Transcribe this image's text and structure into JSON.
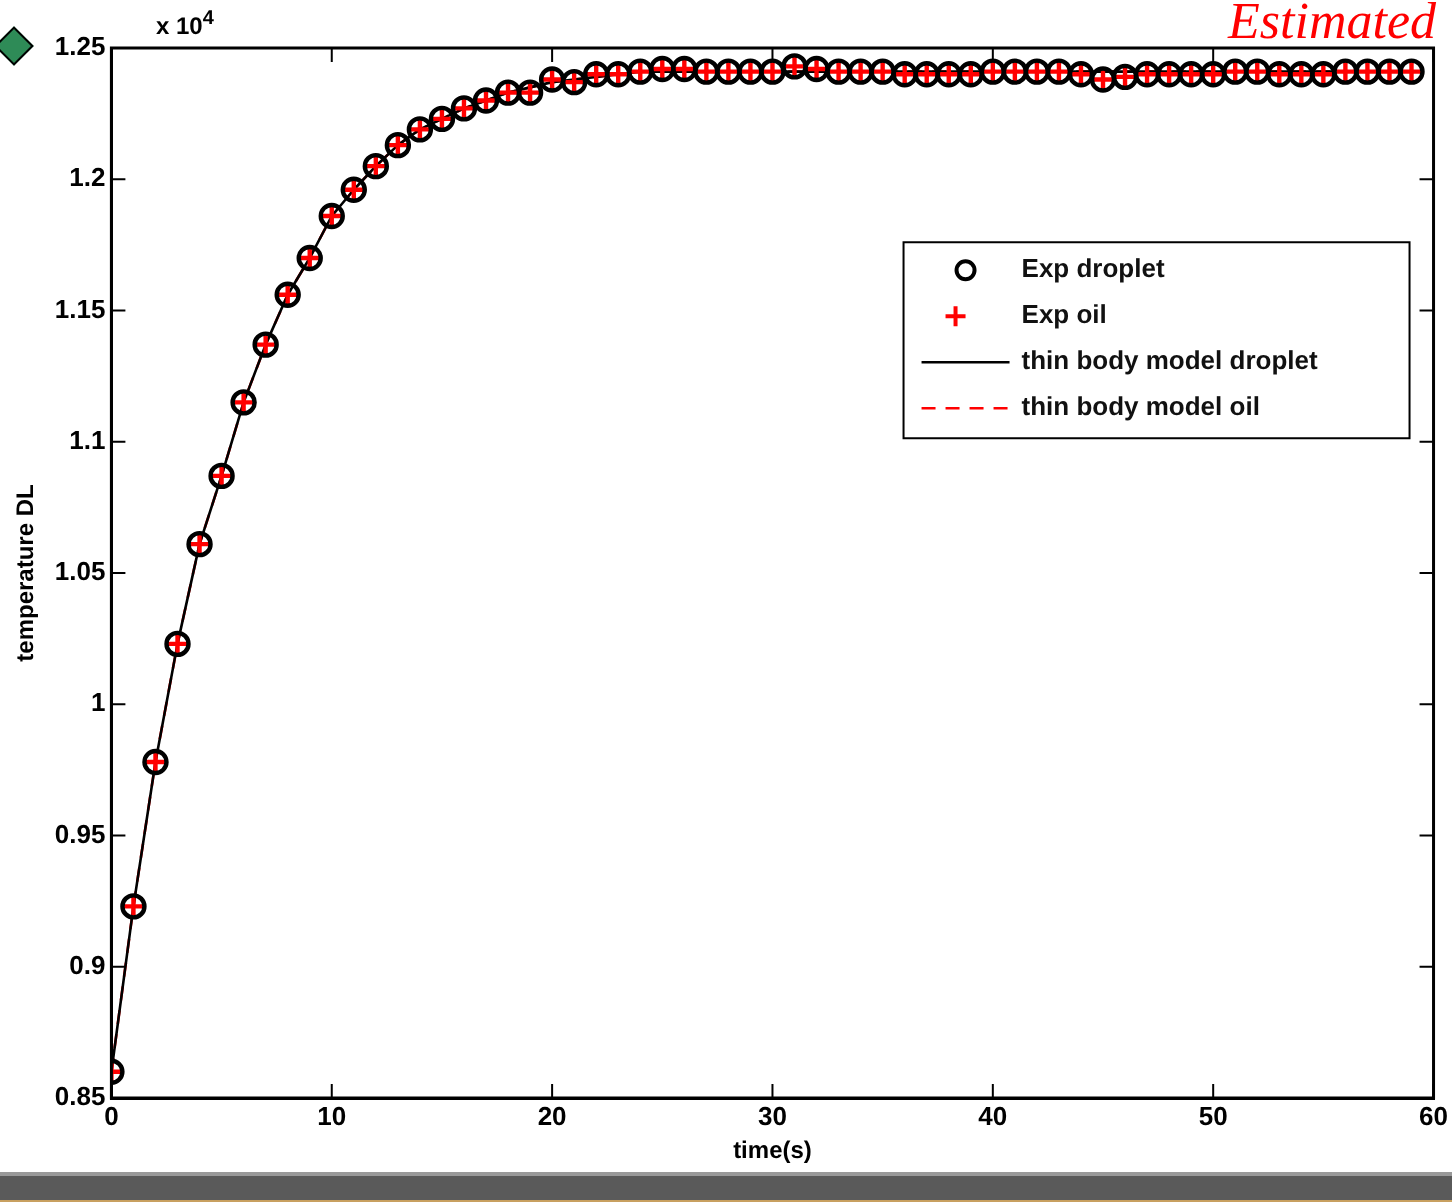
{
  "chart_data": {
    "type": "scatter",
    "title": "Estimated",
    "xlabel": "time(s)",
    "ylabel": "temperature DL",
    "annotations": [
      "x 10$^{4}$"
    ],
    "x": [
      0,
      1,
      2,
      3,
      4,
      5,
      6,
      7,
      8,
      9,
      10,
      11,
      12,
      13,
      14,
      15,
      16,
      17,
      18,
      19,
      20,
      21,
      22,
      23,
      24,
      25,
      26,
      27,
      28,
      29,
      30,
      31,
      32,
      33,
      34,
      35,
      36,
      37,
      38,
      39,
      40,
      41,
      42,
      43,
      44,
      45,
      46,
      47,
      48,
      49,
      50,
      51,
      52,
      53,
      54,
      55,
      56,
      57,
      58,
      59
    ],
    "xlim": [
      0,
      60
    ],
    "xticks": [
      0,
      10,
      20,
      30,
      40,
      50,
      60
    ],
    "ylim": [
      0.85,
      1.25
    ],
    "yticks": [
      0.85,
      0.9,
      0.95,
      1,
      1.05,
      1.1,
      1.15,
      1.2,
      1.25
    ],
    "grid": false,
    "legend": "right",
    "series": [
      {
        "name": "Exp droplet",
        "marker": "circle",
        "color": "#000000",
        "values": [
          0.86,
          0.923,
          0.978,
          1.023,
          1.061,
          1.087,
          1.115,
          1.137,
          1.156,
          1.17,
          1.186,
          1.196,
          1.205,
          1.213,
          1.219,
          1.223,
          1.227,
          1.23,
          1.233,
          1.233,
          1.238,
          1.237,
          1.24,
          1.24,
          1.241,
          1.242,
          1.242,
          1.241,
          1.241,
          1.241,
          1.241,
          1.243,
          1.242,
          1.241,
          1.241,
          1.241,
          1.24,
          1.24,
          1.24,
          1.24,
          1.241,
          1.241,
          1.241,
          1.241,
          1.24,
          1.238,
          1.239,
          1.24,
          1.24,
          1.24,
          1.24,
          1.241,
          1.241,
          1.24,
          1.24,
          1.24,
          1.241,
          1.241,
          1.241,
          1.241
        ]
      },
      {
        "name": "Exp oil",
        "marker": "cross",
        "color": "#ff0000",
        "values": [
          0.86,
          0.923,
          0.978,
          1.023,
          1.061,
          1.087,
          1.115,
          1.137,
          1.156,
          1.17,
          1.186,
          1.196,
          1.205,
          1.213,
          1.219,
          1.223,
          1.227,
          1.23,
          1.233,
          1.233,
          1.238,
          1.237,
          1.24,
          1.24,
          1.241,
          1.242,
          1.242,
          1.241,
          1.241,
          1.241,
          1.241,
          1.243,
          1.242,
          1.241,
          1.241,
          1.241,
          1.24,
          1.24,
          1.24,
          1.24,
          1.241,
          1.241,
          1.241,
          1.241,
          1.24,
          1.238,
          1.239,
          1.24,
          1.24,
          1.24,
          1.24,
          1.241,
          1.241,
          1.24,
          1.24,
          1.24,
          1.241,
          1.241,
          1.241,
          1.241
        ]
      },
      {
        "name": "thin body model droplet",
        "type": "line",
        "marker": "none",
        "line_style": "solid",
        "color": "#000000",
        "values": [
          0.86,
          0.923,
          0.978,
          1.023,
          1.061,
          1.087,
          1.115,
          1.137,
          1.156,
          1.17,
          1.186,
          1.196,
          1.205,
          1.213,
          1.219,
          1.223,
          1.227,
          1.23,
          1.233,
          1.235,
          1.237,
          1.238,
          1.239,
          1.24,
          1.241,
          1.241,
          1.241,
          1.241,
          1.241,
          1.241,
          1.241,
          1.241,
          1.241,
          1.241,
          1.241,
          1.241,
          1.241,
          1.241,
          1.241,
          1.241,
          1.241,
          1.241,
          1.241,
          1.241,
          1.241,
          1.241,
          1.241,
          1.241,
          1.241,
          1.241,
          1.241,
          1.241,
          1.241,
          1.241,
          1.241,
          1.241,
          1.241,
          1.241,
          1.241,
          1.241
        ]
      },
      {
        "name": "thin body model oil",
        "type": "line",
        "marker": "none",
        "line_style": "dashed",
        "color": "#ff0000",
        "values": [
          0.86,
          0.923,
          0.978,
          1.023,
          1.061,
          1.087,
          1.115,
          1.137,
          1.156,
          1.17,
          1.186,
          1.196,
          1.205,
          1.213,
          1.219,
          1.223,
          1.227,
          1.23,
          1.233,
          1.235,
          1.237,
          1.238,
          1.239,
          1.24,
          1.241,
          1.241,
          1.241,
          1.241,
          1.241,
          1.241,
          1.241,
          1.241,
          1.241,
          1.241,
          1.241,
          1.241,
          1.241,
          1.241,
          1.241,
          1.241,
          1.241,
          1.241,
          1.241,
          1.241,
          1.241,
          1.241,
          1.241,
          1.241,
          1.241,
          1.241,
          1.241,
          1.241,
          1.241,
          1.241,
          1.241,
          1.241,
          1.241,
          1.241,
          1.241,
          1.241
        ]
      }
    ]
  }
}
